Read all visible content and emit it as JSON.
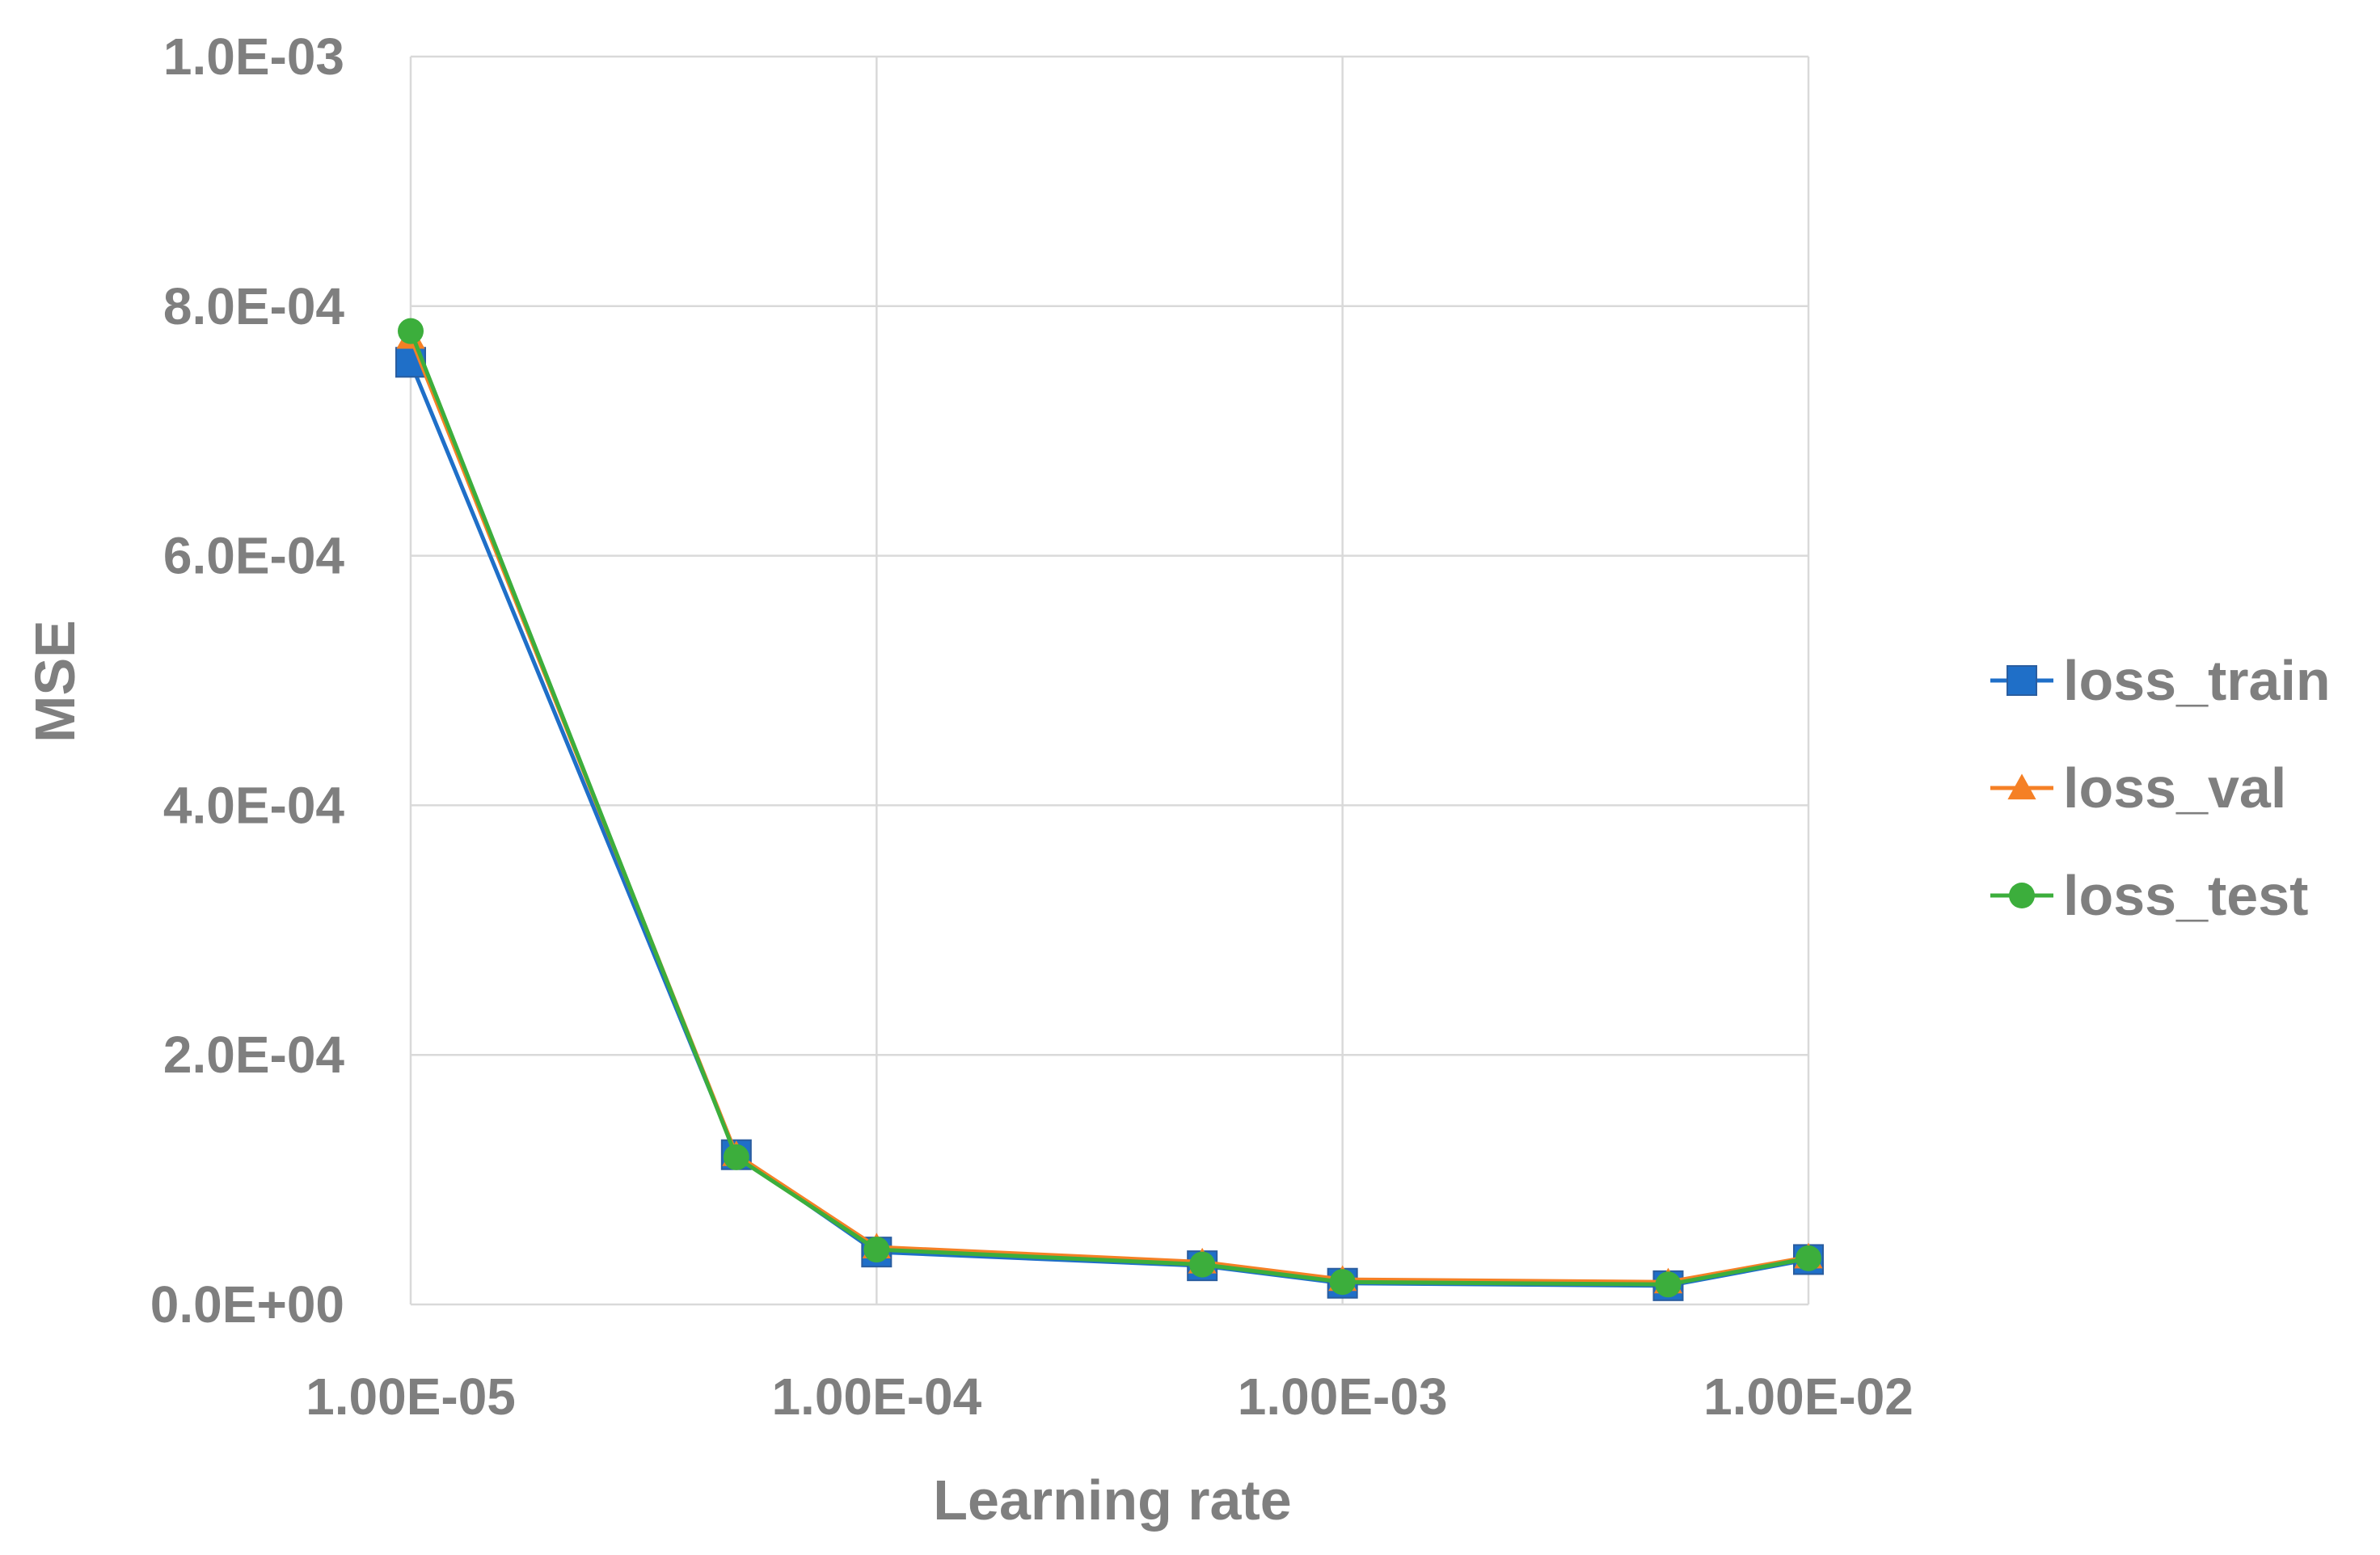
{
  "chart_data": {
    "type": "line",
    "xlabel": "Learning rate",
    "ylabel": "MSE",
    "xscale": "log",
    "xlim": [
      1e-05,
      0.01
    ],
    "ylim": [
      0,
      0.001
    ],
    "xticks": [
      1e-05,
      0.0001,
      0.001,
      0.01
    ],
    "xtick_labels": [
      "1.00E-05",
      "1.00E-04",
      "1.00E-03",
      "1.00E-02"
    ],
    "yticks": [
      0,
      0.0002,
      0.0004,
      0.0006,
      0.0008,
      0.001
    ],
    "ytick_labels": [
      "0.0E+00",
      "2.0E-04",
      "4.0E-04",
      "6.0E-04",
      "8.0E-04",
      "1.0E-03"
    ],
    "grid": true,
    "legend_position": "right",
    "x": [
      1e-05,
      5e-05,
      0.0001,
      0.0005,
      0.001,
      0.005,
      0.01
    ],
    "series": [
      {
        "name": "loss_train",
        "color": "#1f6fc8",
        "marker": "square",
        "values": [
          0.000755,
          0.00012,
          4.2e-05,
          3.1e-05,
          1.7e-05,
          1.5e-05,
          3.6e-05
        ]
      },
      {
        "name": "loss_val",
        "color": "#f58025",
        "marker": "triangle",
        "values": [
          0.000775,
          0.00012,
          4.6e-05,
          3.4e-05,
          2e-05,
          1.8e-05,
          3.8e-05
        ]
      },
      {
        "name": "loss_test",
        "color": "#3cae3c",
        "marker": "circle",
        "values": [
          0.00078,
          0.000118,
          4.4e-05,
          3.2e-05,
          1.8e-05,
          1.6e-05,
          3.7e-05
        ]
      }
    ]
  }
}
